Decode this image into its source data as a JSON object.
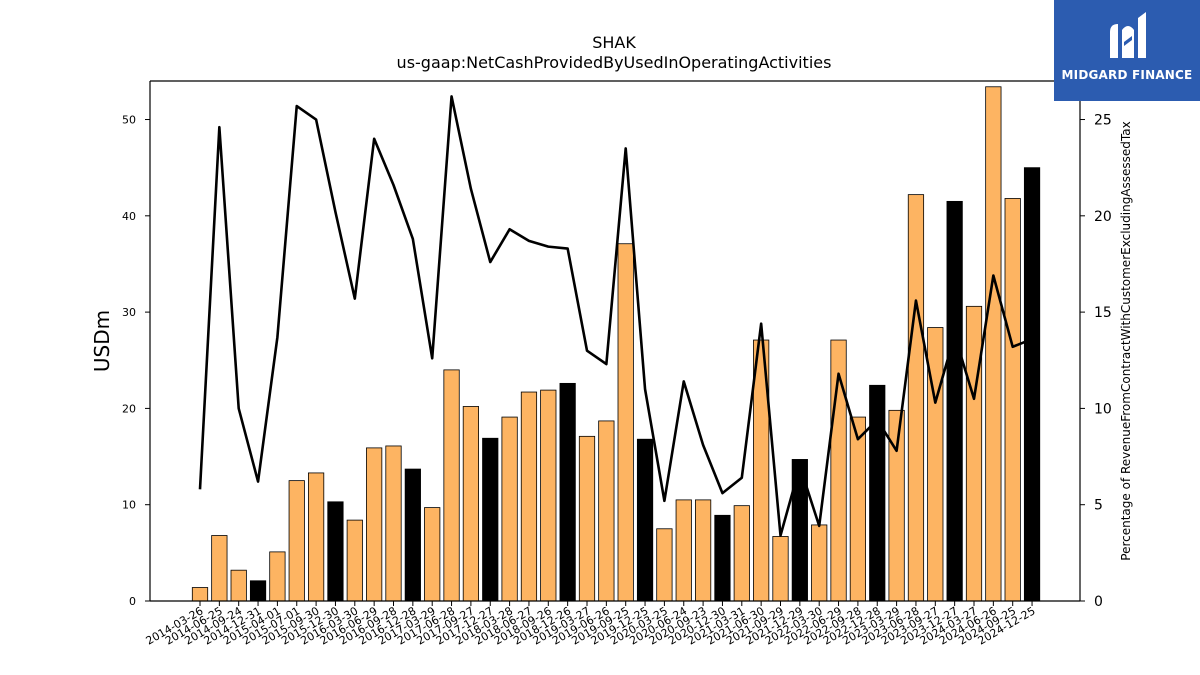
{
  "chart_data": {
    "type": "bar",
    "title": "SHAK",
    "subtitle": "us-gaap:NetCashProvidedByUsedInOperatingActivities",
    "ylabel": "USDm",
    "y2label": "Percentage of RevenueFromContractWithCustomerExcludingAssessedTax",
    "ylim": [
      0,
      54
    ],
    "y2lim": [
      0,
      27
    ],
    "yticks": [
      0,
      10,
      20,
      30,
      40,
      50
    ],
    "y2ticks": [
      0,
      5,
      10,
      15,
      20,
      25
    ],
    "categories": [
      "2014-03-26",
      "2014-06-25",
      "2014-09-24",
      "2014-12-31",
      "2015-04-01",
      "2015-07-01",
      "2015-09-30",
      "2015-12-30",
      "2016-03-30",
      "2016-06-29",
      "2016-09-28",
      "2016-12-28",
      "2017-03-29",
      "2017-06-28",
      "2017-09-27",
      "2017-12-27",
      "2018-03-28",
      "2018-06-27",
      "2018-09-26",
      "2018-12-26",
      "2019-03-27",
      "2019-06-26",
      "2019-09-25",
      "2019-12-25",
      "2020-03-25",
      "2020-06-24",
      "2020-09-23",
      "2020-12-30",
      "2021-03-31",
      "2021-06-30",
      "2021-09-29",
      "2021-12-29",
      "2022-03-30",
      "2022-06-29",
      "2022-09-28",
      "2022-12-28",
      "2023-03-29",
      "2023-06-28",
      "2023-09-27",
      "2023-12-27",
      "2024-03-27",
      "2024-06-26",
      "2024-09-25",
      "2024-12-25"
    ],
    "series": [
      {
        "type": "bar",
        "axis": "left",
        "values": [
          1.4,
          6.8,
          3.2,
          2.1,
          5.1,
          12.5,
          13.3,
          10.3,
          8.4,
          15.9,
          16.1,
          13.7,
          9.7,
          24.0,
          20.2,
          16.9,
          19.1,
          21.7,
          21.9,
          22.6,
          17.1,
          18.7,
          37.1,
          16.8,
          7.5,
          10.5,
          10.5,
          8.9,
          9.9,
          27.1,
          6.7,
          14.7,
          7.9,
          27.1,
          19.1,
          22.4,
          19.8,
          42.2,
          28.4,
          41.5,
          30.6,
          53.4,
          41.8,
          45.0
        ],
        "colors": [
          "#fdb462",
          "#fdb462",
          "#fdb462",
          "#000000",
          "#fdb462",
          "#fdb462",
          "#fdb462",
          "#000000",
          "#fdb462",
          "#fdb462",
          "#fdb462",
          "#000000",
          "#fdb462",
          "#fdb462",
          "#fdb462",
          "#000000",
          "#fdb462",
          "#fdb462",
          "#fdb462",
          "#000000",
          "#fdb462",
          "#fdb462",
          "#fdb462",
          "#000000",
          "#fdb462",
          "#fdb462",
          "#fdb462",
          "#000000",
          "#fdb462",
          "#fdb462",
          "#fdb462",
          "#000000",
          "#fdb462",
          "#fdb462",
          "#fdb462",
          "#000000",
          "#fdb462",
          "#fdb462",
          "#fdb462",
          "#000000",
          "#fdb462",
          "#fdb462",
          "#fdb462",
          "#000000"
        ]
      },
      {
        "type": "line",
        "axis": "right",
        "color": "#000000",
        "values": [
          5.8,
          24.6,
          10.0,
          6.2,
          13.7,
          25.7,
          25.0,
          20.2,
          15.7,
          24.0,
          21.6,
          18.8,
          12.6,
          26.2,
          21.4,
          17.6,
          19.3,
          18.7,
          18.4,
          18.3,
          13.0,
          12.3,
          23.5,
          11.0,
          5.2,
          11.4,
          8.1,
          5.6,
          6.4,
          14.4,
          3.4,
          7.0,
          3.9,
          11.8,
          8.4,
          9.4,
          7.8,
          15.6,
          10.3,
          13.8,
          10.5,
          16.9,
          13.2,
          13.6
        ]
      }
    ],
    "grid": false,
    "legend": "none"
  },
  "logo": {
    "text": "MIDGARD FINANCE",
    "bg_color": "#2c5cb0"
  }
}
